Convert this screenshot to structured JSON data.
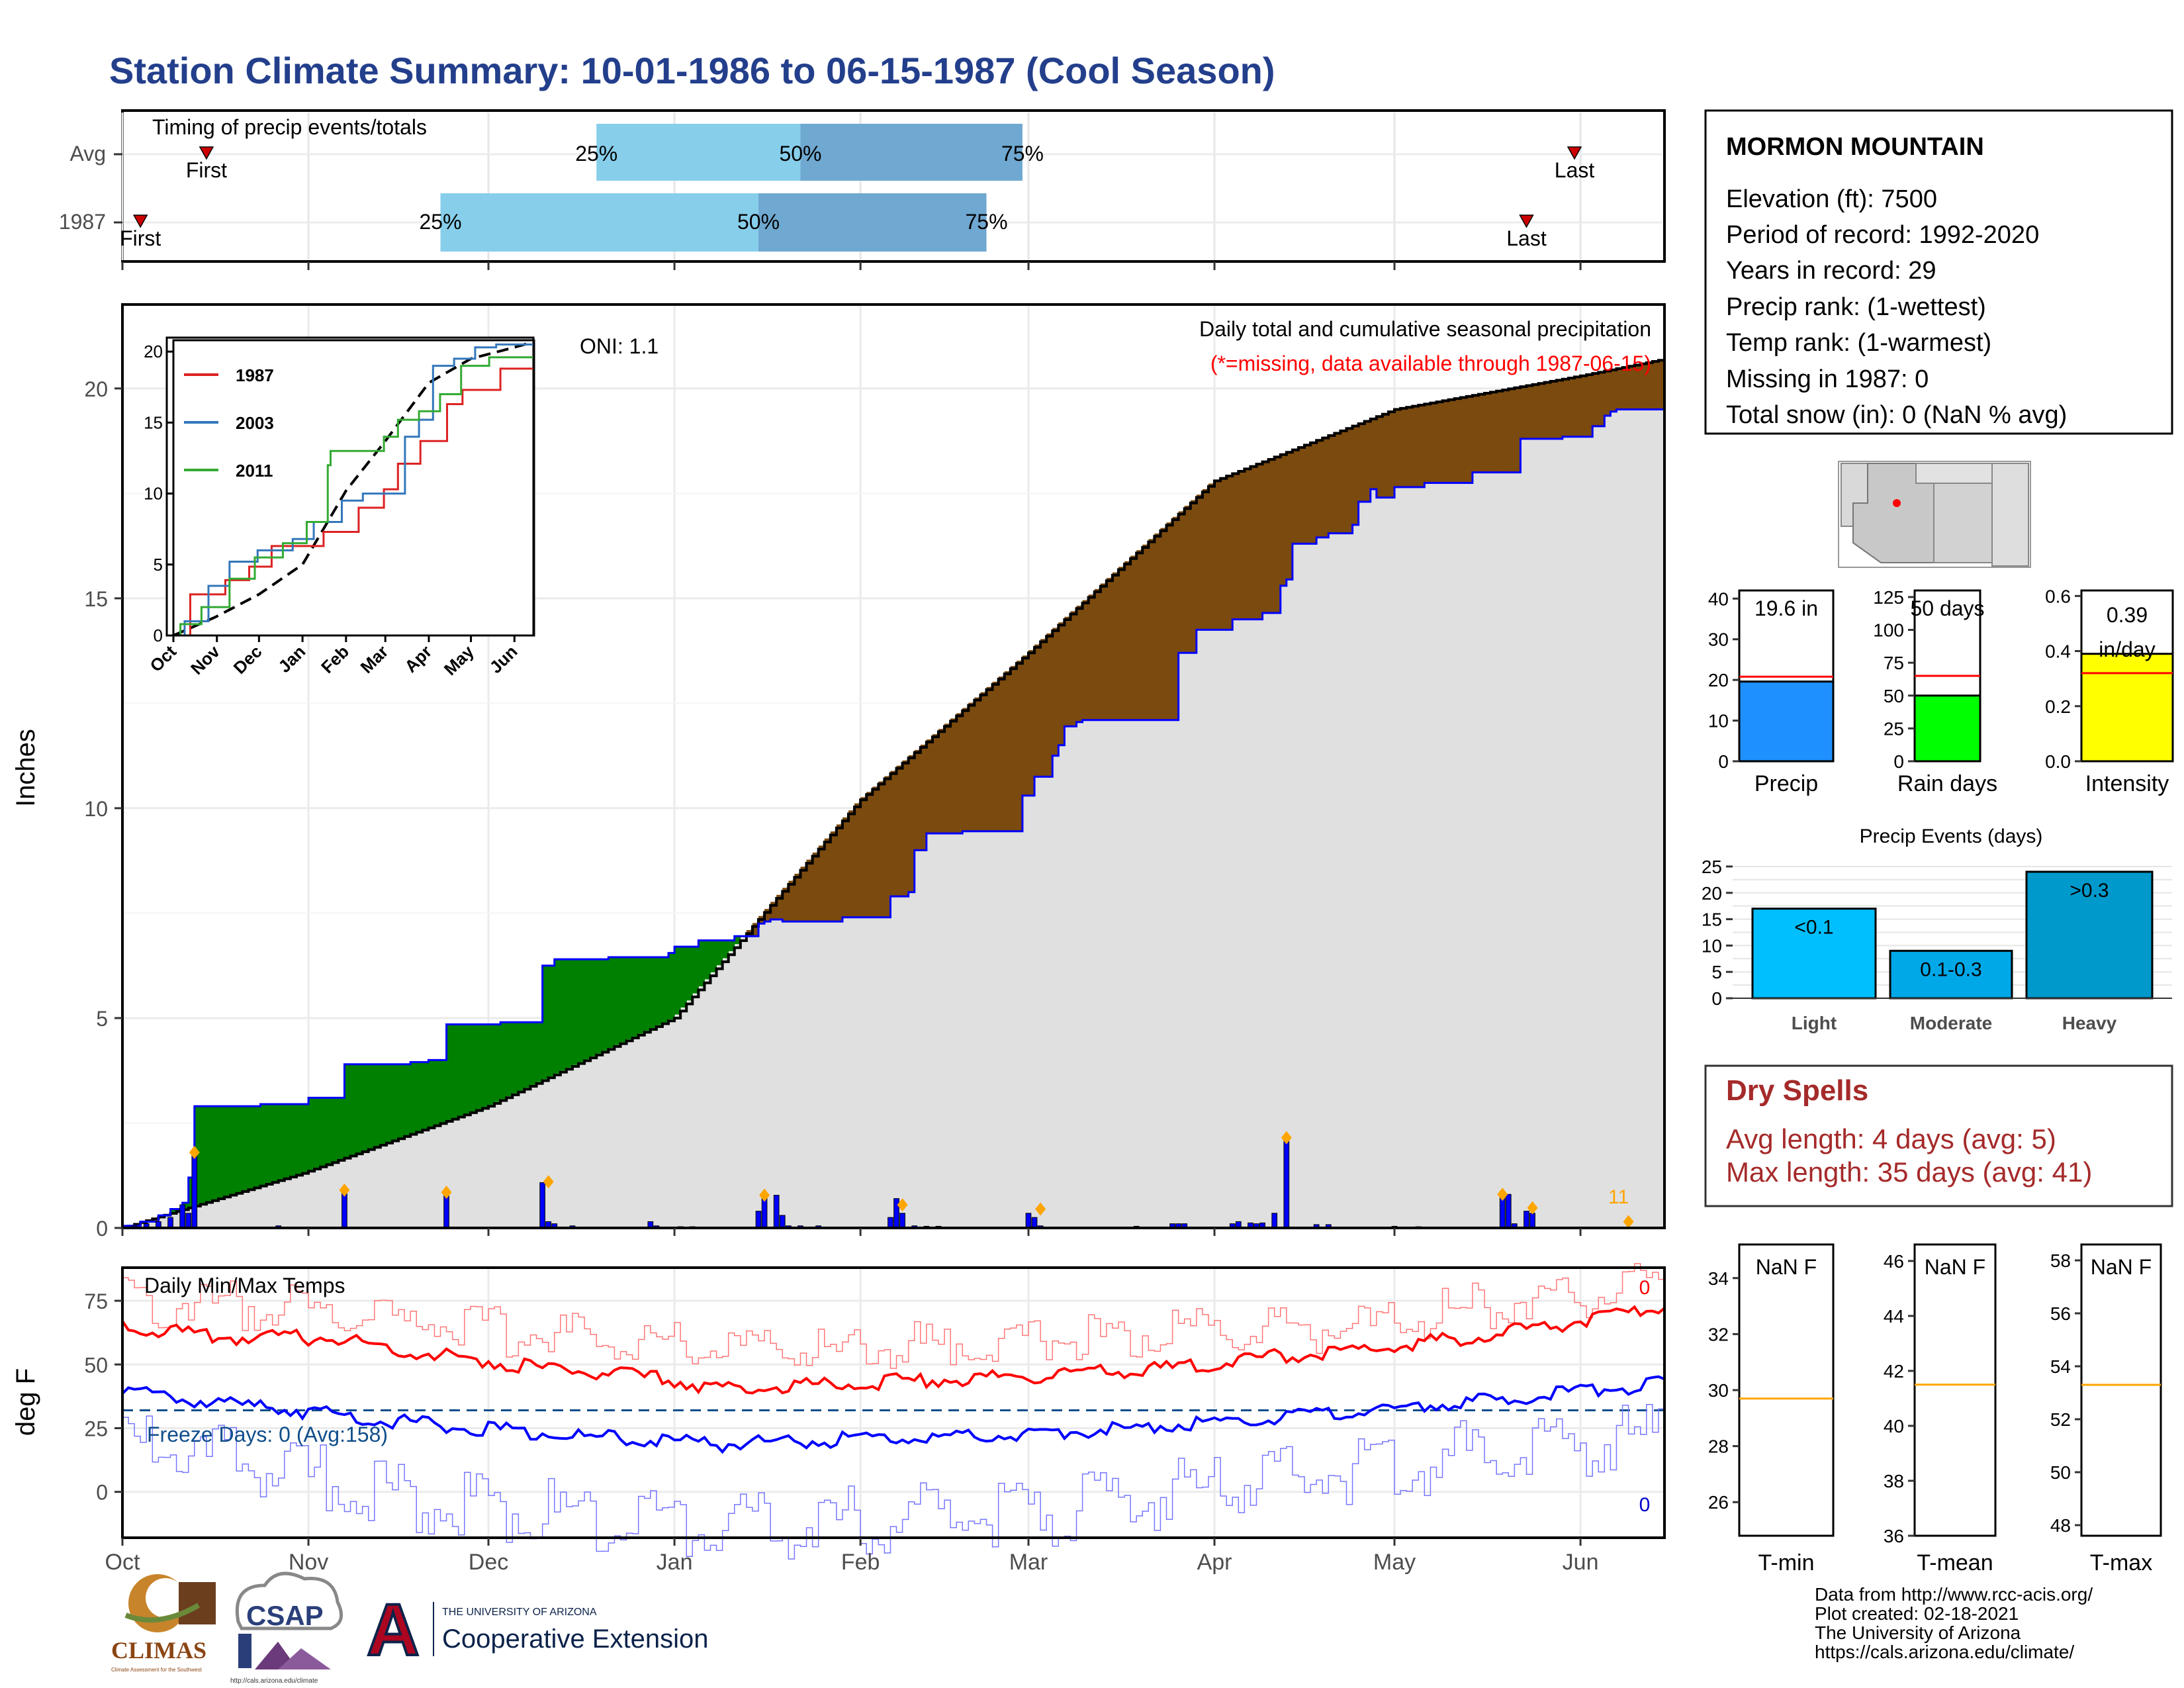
{
  "title": "Station Climate Summary: 10-01-1986 to 06-15-1987 (Cool Season)",
  "timing": {
    "title": "Timing of precip events/totals",
    "rows": [
      {
        "label": "Avg",
        "first_label": "First",
        "last_label": "Last",
        "first_date": "1986-10-15",
        "last_date": "1987-05-31",
        "p25": "1986-12-19",
        "p50": "1987-01-22",
        "p75": "1987-02-28"
      },
      {
        "label": "1987",
        "first_label": "First",
        "last_label": "Last",
        "first_date": "1986-10-04",
        "last_date": "1987-05-23",
        "p25": "1986-11-23",
        "p50": "1987-01-15",
        "p75": "1987-02-22"
      }
    ],
    "pct_labels": [
      "25%",
      "50%",
      "75%"
    ],
    "colors": {
      "light": "#87ceeb",
      "dark": "#6fa8d0",
      "marker": "#cc0000"
    }
  },
  "precip_panel": {
    "ylabel": "Inches",
    "annotation_title": "Daily total and cumulative seasonal precipitation",
    "annotation_missing": "(*=missing, data available through 1987-06-15)",
    "oni": "ONI: 1.1",
    "corner_count": "11",
    "yticks": [
      0,
      5,
      10,
      15,
      20
    ],
    "ylim": [
      0,
      22
    ],
    "colors": {
      "above": "#008000",
      "below": "#7b4a0e",
      "avg": "#e0e0e0",
      "obs_line": "#0000ff",
      "avg_line": "#000000",
      "bars": "#0000ff",
      "diamond": "#ffa500"
    }
  },
  "inset": {
    "yticks": [
      0,
      5,
      10,
      15,
      20
    ],
    "months": [
      "Oct",
      "Nov",
      "Dec",
      "Jan",
      "Feb",
      "Mar",
      "Apr",
      "May",
      "Jun"
    ],
    "series": [
      {
        "name": "1987",
        "color": "#dd2222"
      },
      {
        "name": "2003",
        "color": "#3377bb"
      },
      {
        "name": "2011",
        "color": "#33aa33"
      }
    ]
  },
  "temp_panel": {
    "title": "Daily Min/Max Temps",
    "ylabel": "deg F",
    "freeze_days": "Freeze Days: 0 (Avg:158)",
    "max_count": "0",
    "min_count": "0",
    "yticks": [
      0,
      25,
      50,
      75
    ],
    "ylim": [
      -18,
      88
    ],
    "freeze_line": 32,
    "colors": {
      "max": "#ff0000",
      "min": "#0000ff",
      "max_light": "#ff7777",
      "min_light": "#7777ff",
      "freeze": "#104e8b"
    }
  },
  "x_axis": {
    "months": [
      "Oct",
      "Nov",
      "Dec",
      "Jan",
      "Feb",
      "Mar",
      "Apr",
      "May",
      "Jun"
    ],
    "start": "1986-10-01",
    "end": "1987-06-15"
  },
  "station": {
    "name": "MORMON MOUNTAIN",
    "lines": [
      "Elevation (ft): 7500",
      "Period of record: 1992-2020",
      "Years in record: 29",
      "Precip rank:  (1-wettest)",
      "Temp rank:  (1-warmest)",
      "Missing in 1987: 0",
      "Total snow (in): 0 (NaN % avg)"
    ]
  },
  "summary_bars": [
    {
      "label": "Precip",
      "value_text": "19.6 in",
      "value": 19.6,
      "avg": 20.8,
      "ymax": 42,
      "yticks": [
        0,
        10,
        20,
        30,
        40
      ],
      "color": "#1e90ff"
    },
    {
      "label": "Rain days",
      "value_text": "50 days",
      "value": 50,
      "avg": 65,
      "ymax": 130,
      "yticks": [
        0,
        25,
        50,
        75,
        100,
        125
      ],
      "color": "#00ff00"
    },
    {
      "label": "Intensity",
      "value_text": "0.39 in/day",
      "value": 0.39,
      "avg": 0.32,
      "ymax": 0.62,
      "yticks": [
        0.0,
        0.2,
        0.4,
        0.6
      ],
      "color": "#ffff00"
    }
  ],
  "precip_events": {
    "title": "Precip Events (days)",
    "yticks": [
      0,
      5,
      10,
      15,
      20,
      25
    ],
    "ymax": 25.5,
    "bars": [
      {
        "category": "Light",
        "label": "<0.1",
        "value": 17,
        "color": "#00bfff"
      },
      {
        "category": "Moderate",
        "label": "0.1-0.3",
        "value": 9,
        "color": "#00a8e8"
      },
      {
        "category": "Heavy",
        "label": ">0.3",
        "value": 24,
        "color": "#0099cc"
      }
    ]
  },
  "dry_spells": {
    "title": "Dry Spells",
    "avg_line": "Avg length: 4 days (avg: 5)",
    "max_line": "Max length: 35 days (avg: 41)",
    "color": "#a52a2a"
  },
  "temp_boxes": [
    {
      "label": "T-min",
      "value_text": "NaN F",
      "yticks": [
        26,
        28,
        30,
        32,
        34
      ],
      "ylim": [
        24.8,
        35.2
      ],
      "avg": 29.7
    },
    {
      "label": "T-mean",
      "value_text": "NaN F",
      "yticks": [
        36,
        38,
        40,
        42,
        44,
        46
      ],
      "ylim": [
        36,
        46.6
      ],
      "avg": 41.5
    },
    {
      "label": "T-max",
      "value_text": "NaN F",
      "yticks": [
        48,
        50,
        52,
        54,
        56,
        58
      ],
      "ylim": [
        47.6,
        58.6
      ],
      "avg": 53.3
    }
  ],
  "credits": [
    "Data from http://www.rcc-acis.org/",
    "Plot created: 02-18-2021",
    "The University of Arizona",
    "https://cals.arizona.edu/climate/"
  ],
  "logos": {
    "climas": "CLIMAS",
    "climas_sub": "Climate Assessment for the Southwest",
    "csap": "CSAP",
    "csap_url": "http://cals.arizona.edu/climate",
    "ua_letter": "A",
    "ua_small": "THE UNIVERSITY OF ARIZONA",
    "ua_big": "Cooperative Extension"
  }
}
